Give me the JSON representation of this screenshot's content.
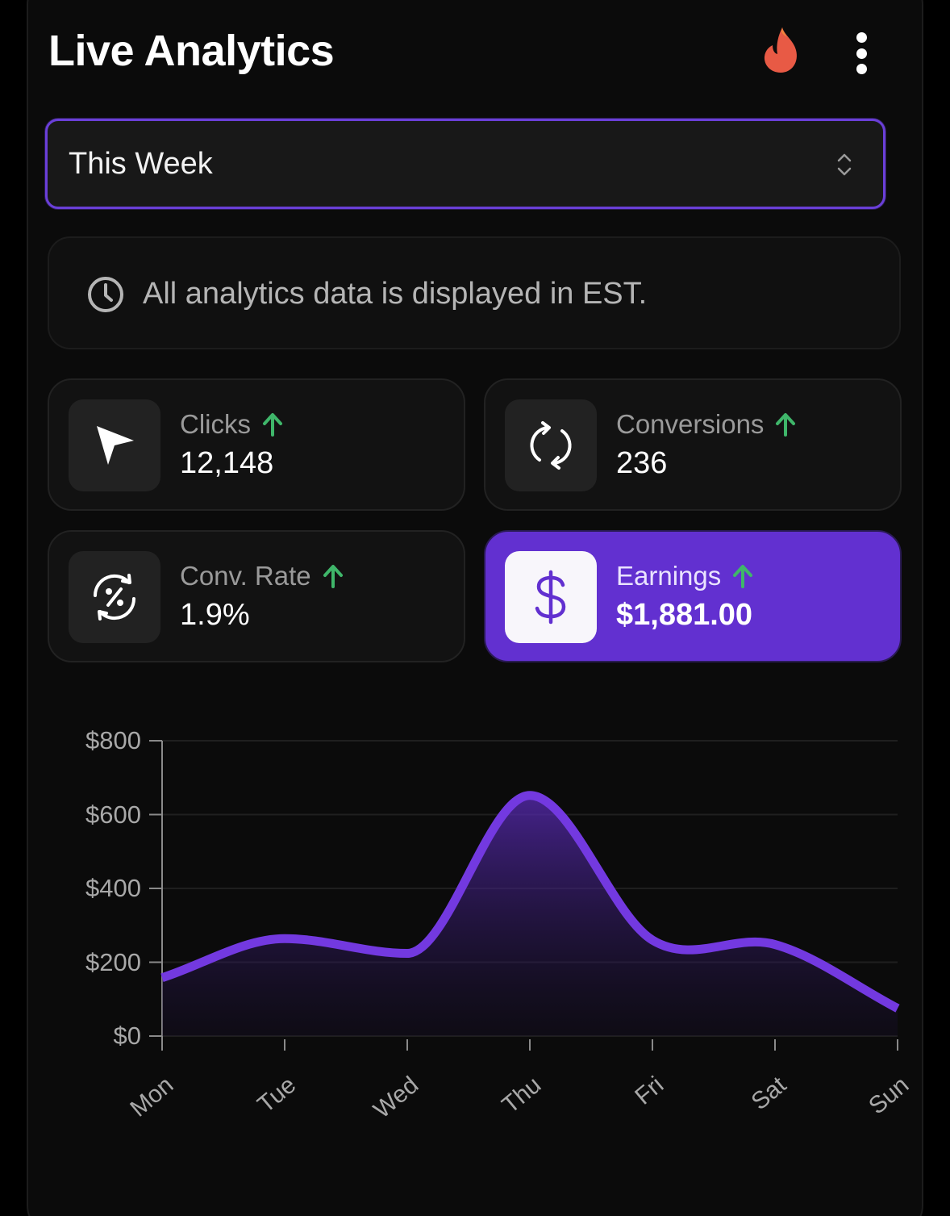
{
  "header": {
    "title": "Live Analytics",
    "icons": [
      "flame-icon",
      "more-vertical-icon"
    ]
  },
  "period_select": {
    "value": "This Week",
    "icon": "chevron-up-down-icon"
  },
  "notice": {
    "icon": "clock-icon",
    "text": "All analytics data is displayed in EST."
  },
  "stats": [
    {
      "label": "Clicks",
      "value": "12,148",
      "icon": "cursor-arrow-icon",
      "trend": "up"
    },
    {
      "label": "Conversions",
      "value": "236",
      "icon": "refresh-cycle-icon",
      "trend": "up"
    },
    {
      "label": "Conv. Rate",
      "value": "1.9%",
      "icon": "percent-cycle-icon",
      "trend": "up"
    },
    {
      "label": "Earnings",
      "value": "$1,881.00",
      "icon": "dollar-icon",
      "trend": "up",
      "highlighted": true
    }
  ],
  "colors": {
    "accent": "#6230d0",
    "line": "#7339e0",
    "trend_up": "#3fb66a",
    "flame": "#e85a45",
    "background": "#0b0b0b"
  },
  "chart_data": {
    "type": "area",
    "title": "",
    "xlabel": "",
    "ylabel": "",
    "categories": [
      "Mon",
      "Tue",
      "Wed",
      "Thu",
      "Fri",
      "Sat",
      "Sun"
    ],
    "series": [
      {
        "name": "Earnings",
        "values": [
          158,
          264,
          224,
          652,
          260,
          248,
          75
        ]
      }
    ],
    "y_ticks": [
      "$0",
      "$200",
      "$400",
      "$600",
      "$800"
    ],
    "ylim": [
      0,
      800
    ],
    "grid": true,
    "legend": "none",
    "x_label_rotation": -40
  }
}
